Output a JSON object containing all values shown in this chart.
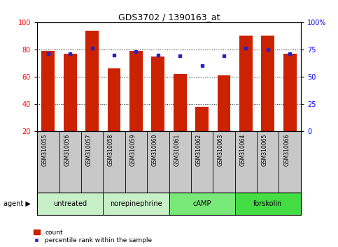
{
  "title": "GDS3702 / 1390163_at",
  "samples": [
    "GSM310055",
    "GSM310056",
    "GSM310057",
    "GSM310058",
    "GSM310059",
    "GSM310060",
    "GSM310061",
    "GSM310062",
    "GSM310063",
    "GSM310064",
    "GSM310065",
    "GSM310066"
  ],
  "count_values": [
    79,
    77,
    94,
    66,
    79,
    75,
    62,
    38,
    61,
    90,
    90,
    77
  ],
  "percentile_values": [
    71,
    71,
    76,
    70,
    73,
    70,
    69,
    60,
    69,
    76,
    75,
    71
  ],
  "agents": [
    {
      "label": "untreated",
      "start": 0,
      "end": 3,
      "color": "#c8f0c8"
    },
    {
      "label": "norepinephrine",
      "start": 3,
      "end": 6,
      "color": "#c8f0c8"
    },
    {
      "label": "cAMP",
      "start": 6,
      "end": 9,
      "color": "#78e878"
    },
    {
      "label": "forskolin",
      "start": 9,
      "end": 12,
      "color": "#44dd44"
    }
  ],
  "ylim_left": [
    20,
    100
  ],
  "ylim_right": [
    0,
    100
  ],
  "yticks_left": [
    20,
    40,
    60,
    80,
    100
  ],
  "yticks_right": [
    0,
    25,
    50,
    75,
    100
  ],
  "ytick_labels_right": [
    "0",
    "25",
    "50",
    "75",
    "100%"
  ],
  "bar_color": "#cc2200",
  "dot_color": "#2222cc",
  "grid_color": "#000000",
  "sample_bg_color": "#c8c8c8",
  "legend_count_color": "#cc2200",
  "legend_dot_color": "#2222cc"
}
